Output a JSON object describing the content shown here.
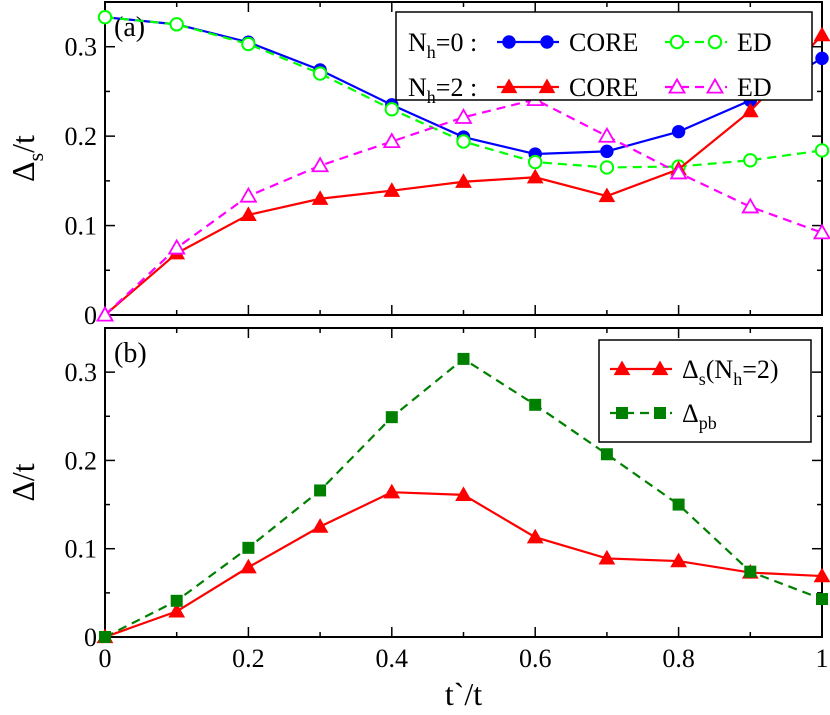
{
  "chart_data": [
    {
      "panel_label": "(a)",
      "type": "line",
      "ylabel_main": "Δ",
      "ylabel_sub": "s",
      "ylabel_tail": "/t",
      "xlim": [
        0,
        1
      ],
      "ylim": [
        0,
        0.35
      ],
      "yticks": [
        0,
        0.1,
        0.2,
        0.3
      ],
      "ytick_labels": [
        "0",
        "0.1",
        "0.2",
        "0.3"
      ],
      "legend_position": "top-right",
      "legend_rows": [
        {
          "prefix": "N",
          "prefix_sub": "h",
          "prefix_tail": "=0 :"
        },
        {
          "prefix": "N",
          "prefix_sub": "h",
          "prefix_tail": "=2 :"
        }
      ],
      "series": [
        {
          "name": "CORE",
          "legend_row": 0,
          "color": "#0000ff",
          "marker": "circle-filled",
          "dash": false,
          "x": [
            0,
            0.1,
            0.2,
            0.3,
            0.4,
            0.5,
            0.6,
            0.7,
            0.8,
            0.9,
            1.0
          ],
          "y": [
            0.333,
            0.325,
            0.305,
            0.274,
            0.235,
            0.199,
            0.18,
            0.183,
            0.205,
            0.24,
            0.287
          ]
        },
        {
          "name": "ED",
          "legend_row": 0,
          "color": "#00ff00",
          "marker": "circle-open",
          "dash": true,
          "x": [
            0,
            0.1,
            0.2,
            0.3,
            0.4,
            0.5,
            0.6,
            0.7,
            0.8,
            0.9,
            1.0
          ],
          "y": [
            0.333,
            0.325,
            0.303,
            0.27,
            0.23,
            0.194,
            0.171,
            0.165,
            0.166,
            0.173,
            0.184
          ]
        },
        {
          "name": "CORE",
          "legend_row": 1,
          "color": "#ff0000",
          "marker": "triangle-filled",
          "dash": false,
          "x": [
            0,
            0.1,
            0.2,
            0.3,
            0.4,
            0.5,
            0.6,
            0.7,
            0.8,
            0.9,
            1.0
          ],
          "y": [
            0.0,
            0.069,
            0.112,
            0.13,
            0.139,
            0.149,
            0.154,
            0.133,
            0.163,
            0.228,
            0.313
          ]
        },
        {
          "name": "ED",
          "legend_row": 1,
          "color": "#ff00ff",
          "marker": "triangle-open",
          "dash": true,
          "x": [
            0,
            0.1,
            0.2,
            0.3,
            0.4,
            0.5,
            0.6,
            0.7,
            0.8,
            0.9,
            1.0
          ],
          "y": [
            0.0,
            0.075,
            0.133,
            0.167,
            0.194,
            0.221,
            0.241,
            0.2,
            0.159,
            0.121,
            0.092
          ]
        }
      ]
    },
    {
      "panel_label": "(b)",
      "type": "line",
      "ylabel_main": "Δ",
      "ylabel_sub": "",
      "ylabel_tail": "/t",
      "xlabel": "t`/t",
      "xlim": [
        0,
        1
      ],
      "ylim": [
        0,
        0.35
      ],
      "xticks": [
        0,
        0.2,
        0.4,
        0.6,
        0.8,
        1.0
      ],
      "xtick_labels": [
        "0",
        "0.2",
        "0.4",
        "0.6",
        "0.8",
        "1"
      ],
      "yticks": [
        0,
        0.1,
        0.2,
        0.3
      ],
      "ytick_labels": [
        "0",
        "0.1",
        "0.2",
        "0.3"
      ],
      "legend_position": "top-right",
      "series": [
        {
          "name": "Δ",
          "name_sub": "s",
          "name_tail": "(N",
          "name_sub2": "h",
          "name_tail2": "=2)",
          "color": "#ff0000",
          "marker": "triangle-filled",
          "dash": false,
          "x": [
            0,
            0.1,
            0.2,
            0.3,
            0.4,
            0.5,
            0.6,
            0.7,
            0.8,
            0.9,
            1.0
          ],
          "y": [
            0.0,
            0.029,
            0.079,
            0.125,
            0.164,
            0.161,
            0.113,
            0.089,
            0.086,
            0.073,
            0.069
          ]
        },
        {
          "name": "Δ",
          "name_sub": "pb",
          "name_tail": "",
          "name_sub2": "",
          "name_tail2": "",
          "color": "#008000",
          "marker": "square-filled",
          "dash": true,
          "x": [
            0,
            0.1,
            0.2,
            0.3,
            0.4,
            0.5,
            0.6,
            0.7,
            0.8,
            0.9,
            1.0
          ],
          "y": [
            0.0,
            0.041,
            0.101,
            0.166,
            0.249,
            0.315,
            0.263,
            0.207,
            0.15,
            0.074,
            0.043
          ]
        }
      ]
    }
  ]
}
